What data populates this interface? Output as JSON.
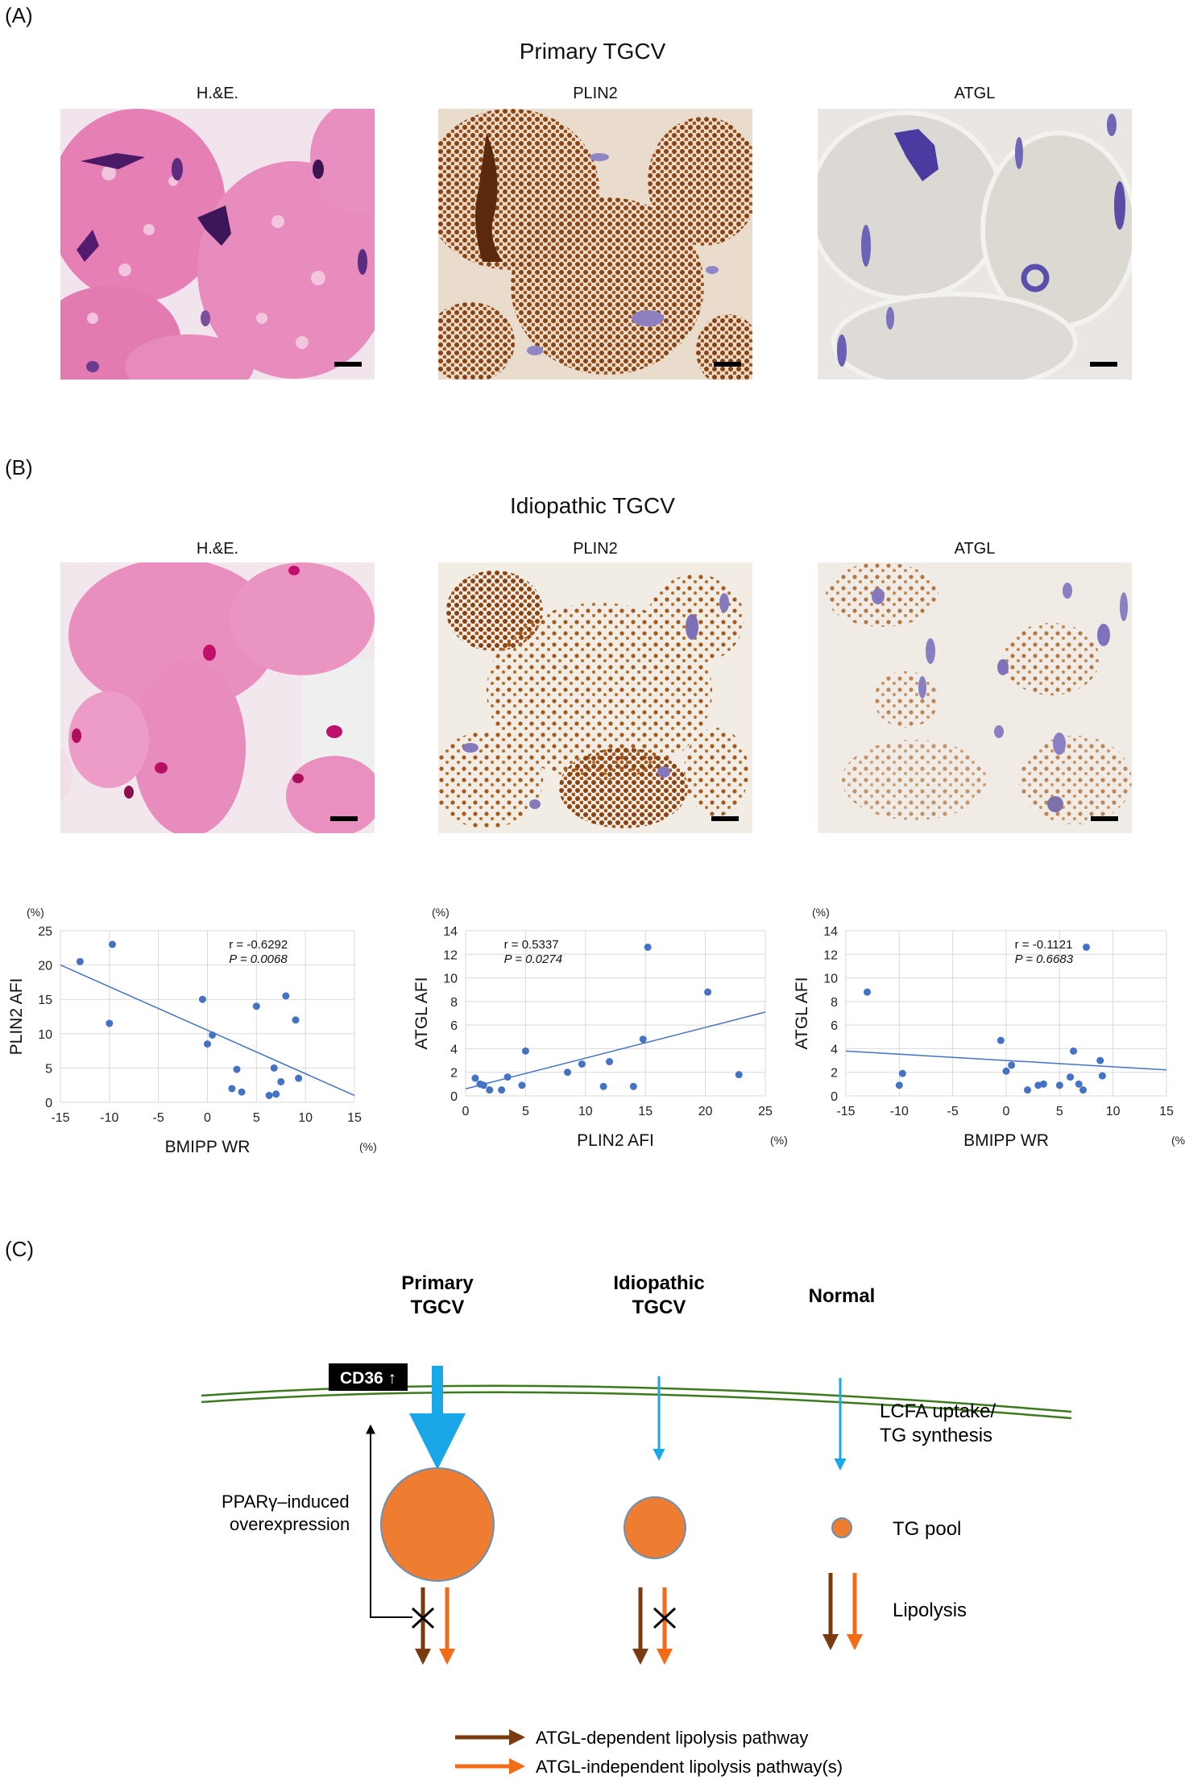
{
  "panel_a": {
    "letter": "(A)",
    "title": "Primary TGCV",
    "labels": [
      "H.&E.",
      "PLIN2",
      "ATGL"
    ]
  },
  "panel_b": {
    "letter": "(B)",
    "title": "Idiopathic TGCV",
    "labels": [
      "H.&E.",
      "PLIN2",
      "ATGL"
    ]
  },
  "panel_c": {
    "letter": "(C)",
    "columns": [
      "Primary TGCV",
      "Idiopathic TGCV",
      "Normal"
    ],
    "cd36_label": "CD36 ↑",
    "ppar_line1": "PPARγ–induced",
    "ppar_line2": "overexpression",
    "lcfa_line1": "LCFA uptake/",
    "lcfa_line2": "TG synthesis",
    "tg_pool": "TG pool",
    "lipolysis": "Lipolysis",
    "legend": [
      {
        "label": "ATGL-dependent lipolysis pathway",
        "color": "#7a3b10"
      },
      {
        "label": "ATGL-independent lipolysis pathway(s)",
        "color": "#f36b16"
      }
    ],
    "colors": {
      "uptake": "#1aa7e8",
      "pool": "#ee7d31",
      "membrane": "#3d7a1e"
    }
  },
  "chart_data": [
    {
      "type": "scatter",
      "unit_y": "(%)",
      "unit_x": "(%)",
      "xlabel": "BMIPP WR",
      "ylabel": "PLIN2 AFI",
      "xlim": [
        -15,
        15
      ],
      "ylim": [
        0,
        25
      ],
      "xticks": [
        "-15",
        "-10",
        "-5",
        "0",
        "5",
        "10",
        "15"
      ],
      "yticks": [
        "0",
        "5",
        "10",
        "15",
        "20",
        "25"
      ],
      "stat_r": "r = -0.6292",
      "stat_p": "P = 0.0068",
      "trend": [
        [
          -15,
          20.0
        ],
        [
          15,
          1.0
        ]
      ],
      "points": [
        [
          -13,
          20.5
        ],
        [
          -10,
          11.5
        ],
        [
          -9.7,
          23
        ],
        [
          -0.5,
          15
        ],
        [
          0,
          8.5
        ],
        [
          0.5,
          9.8
        ],
        [
          2.5,
          2
        ],
        [
          3,
          4.8
        ],
        [
          3.5,
          1.5
        ],
        [
          5,
          14
        ],
        [
          6.3,
          1
        ],
        [
          6.8,
          5
        ],
        [
          7,
          1.2
        ],
        [
          7.5,
          3
        ],
        [
          8,
          15.5
        ],
        [
          9,
          12
        ],
        [
          9.3,
          3.5
        ]
      ]
    },
    {
      "type": "scatter",
      "unit_y": "(%)",
      "unit_x": "(%)",
      "xlabel": "PLIN2 AFI",
      "ylabel": "ATGL AFI",
      "xlim": [
        0,
        25
      ],
      "ylim": [
        0,
        14
      ],
      "xticks": [
        "0",
        "5",
        "10",
        "15",
        "20",
        "25"
      ],
      "yticks": [
        "0",
        "2",
        "4",
        "6",
        "8",
        "10",
        "12",
        "14"
      ],
      "stat_r": "r = 0.5337",
      "stat_p": "P = 0.0274",
      "trend": [
        [
          0,
          0.6
        ],
        [
          25,
          7.1
        ]
      ],
      "points": [
        [
          0.8,
          1.5
        ],
        [
          1.2,
          1
        ],
        [
          1.5,
          0.9
        ],
        [
          2,
          0.5
        ],
        [
          3,
          0.5
        ],
        [
          3.5,
          1.6
        ],
        [
          4.7,
          0.9
        ],
        [
          5,
          3.8
        ],
        [
          8.5,
          2
        ],
        [
          9.7,
          2.7
        ],
        [
          11.5,
          0.8
        ],
        [
          12,
          2.9
        ],
        [
          14,
          0.8
        ],
        [
          14.8,
          4.8
        ],
        [
          15.2,
          12.6
        ],
        [
          20.2,
          8.8
        ],
        [
          22.8,
          1.8
        ]
      ]
    },
    {
      "type": "scatter",
      "unit_y": "(%)",
      "unit_x": "(%)",
      "xlabel": "BMIPP WR",
      "ylabel": "ATGL AFI",
      "xlim": [
        -15,
        15
      ],
      "ylim": [
        0,
        14
      ],
      "xticks": [
        "-15",
        "-10",
        "-5",
        "0",
        "5",
        "10",
        "15"
      ],
      "yticks": [
        "0",
        "2",
        "4",
        "6",
        "8",
        "10",
        "12",
        "14"
      ],
      "stat_r": "r = -0.1121",
      "stat_p": "P = 0.6683",
      "trend": [
        [
          -15,
          3.8
        ],
        [
          15,
          2.2
        ]
      ],
      "points": [
        [
          -13,
          8.8
        ],
        [
          -10,
          0.9
        ],
        [
          -9.7,
          1.9
        ],
        [
          -0.5,
          4.7
        ],
        [
          0,
          2.1
        ],
        [
          0.5,
          2.6
        ],
        [
          2,
          0.5
        ],
        [
          3,
          0.9
        ],
        [
          3.5,
          1
        ],
        [
          5,
          0.9
        ],
        [
          6,
          1.6
        ],
        [
          6.3,
          3.8
        ],
        [
          6.8,
          1
        ],
        [
          7.2,
          0.5
        ],
        [
          7.5,
          12.6
        ],
        [
          8.8,
          3
        ],
        [
          9,
          1.7
        ]
      ]
    }
  ]
}
